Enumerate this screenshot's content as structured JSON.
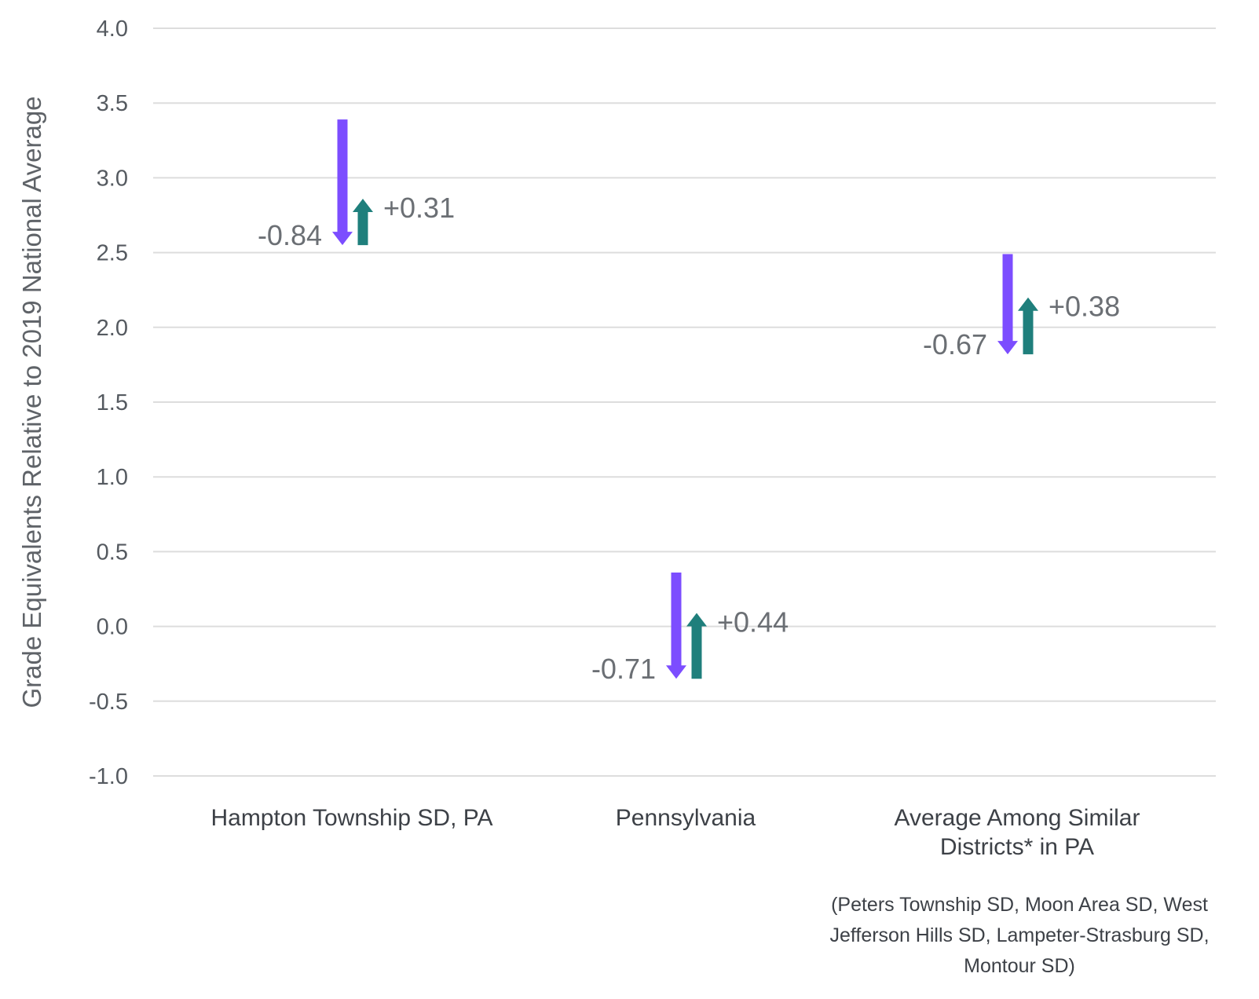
{
  "chart_data": {
    "type": "arrow",
    "ylabel": "Grade Equivalents Relative to 2019 National Average",
    "ylim": [
      -1.0,
      4.0
    ],
    "yticks": [
      {
        "value": 4.0,
        "label": "4.0"
      },
      {
        "value": 3.5,
        "label": "3.5"
      },
      {
        "value": 3.0,
        "label": "3.0"
      },
      {
        "value": 2.5,
        "label": "2.5"
      },
      {
        "value": 2.0,
        "label": "2.0"
      },
      {
        "value": 1.5,
        "label": "1.5"
      },
      {
        "value": 1.0,
        "label": "1.0"
      },
      {
        "value": 0.5,
        "label": "0.5"
      },
      {
        "value": 0.0,
        "label": "0.0"
      },
      {
        "value": -0.5,
        "label": "-0.5"
      },
      {
        "value": -1.0,
        "label": "-1.0"
      }
    ],
    "grid": true,
    "colors": {
      "decline": "#7c4dff",
      "recovery": "#1f7f7c"
    },
    "categories": [
      {
        "label_lines": [
          "Hampton Township SD, PA"
        ],
        "start": 3.39,
        "decline": -0.84,
        "decline_label": "-0.84",
        "recovery": 0.31,
        "recovery_label": "+0.31"
      },
      {
        "label_lines": [
          "Pennsylvania"
        ],
        "start": 0.36,
        "decline": -0.71,
        "decline_label": "-0.71",
        "recovery": 0.44,
        "recovery_label": "+0.44"
      },
      {
        "label_lines": [
          "Average Among Similar",
          "Districts* in PA"
        ],
        "start": 2.49,
        "decline": -0.67,
        "decline_label": "-0.67",
        "recovery": 0.38,
        "recovery_label": "+0.38"
      }
    ],
    "note_lines": [
      "(Peters Township SD, Moon Area SD, West",
      "Jefferson Hills SD, Lampeter-Strasburg SD,",
      "Montour SD)"
    ]
  }
}
